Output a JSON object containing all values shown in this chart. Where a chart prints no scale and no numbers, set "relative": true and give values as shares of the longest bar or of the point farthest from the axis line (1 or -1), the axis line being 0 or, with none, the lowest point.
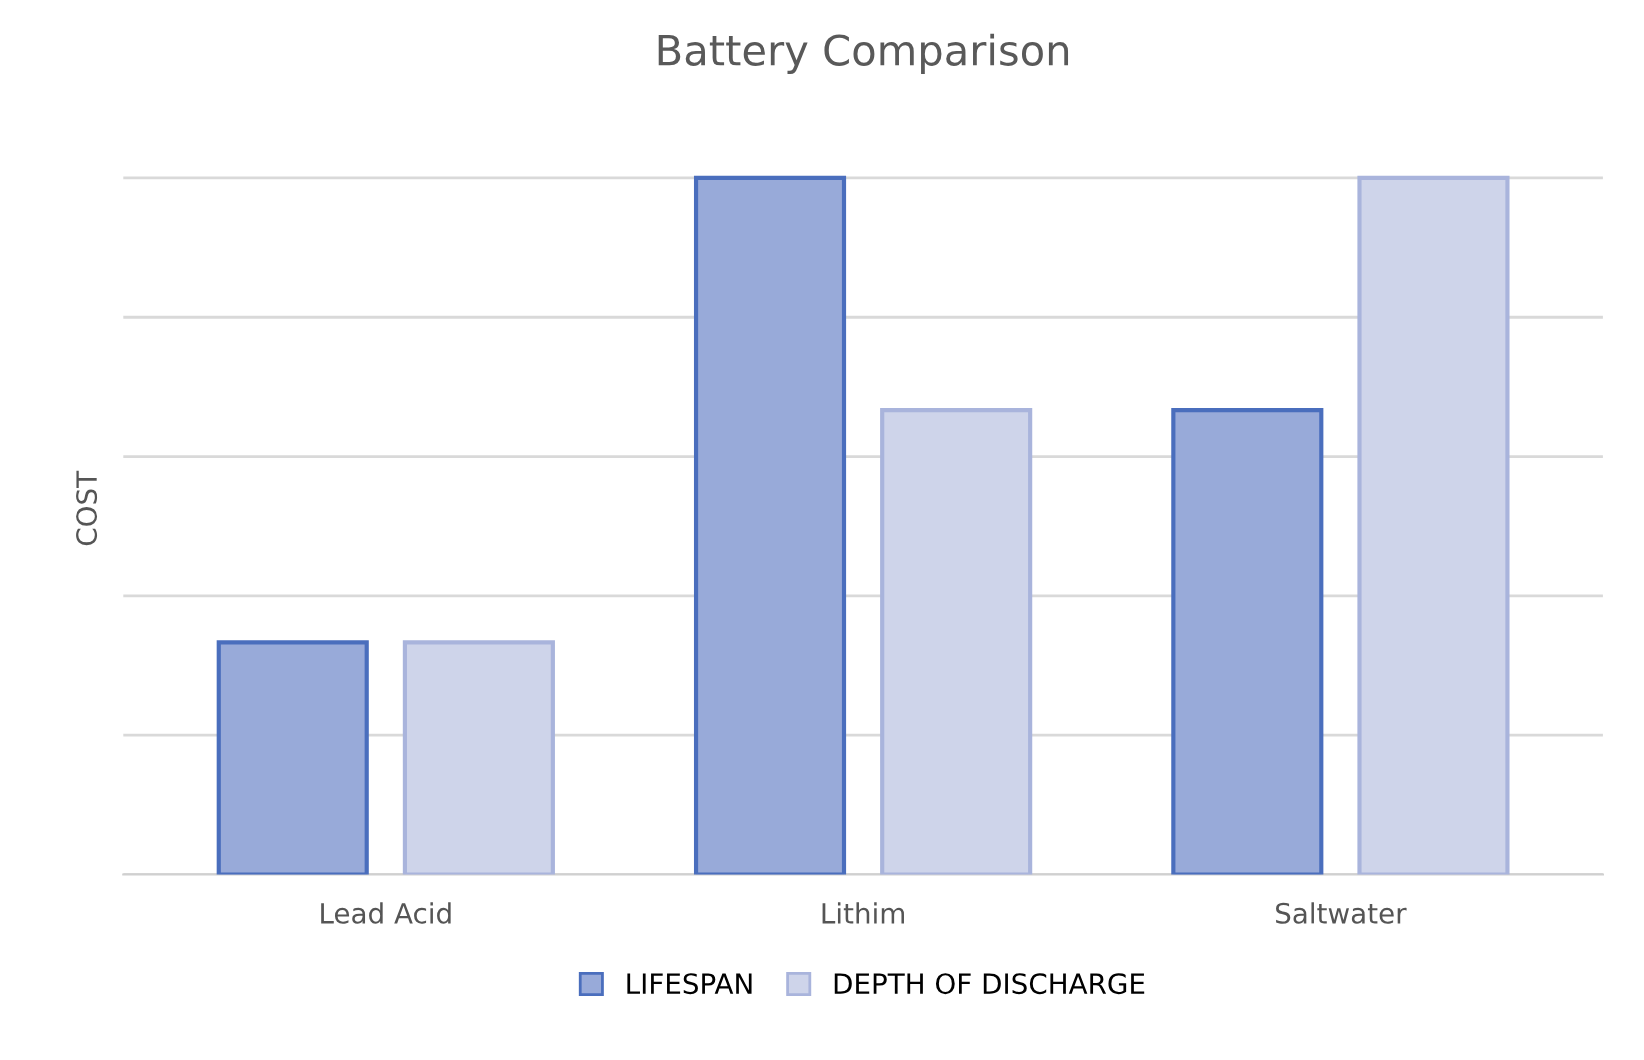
{
  "chart_data": {
    "type": "bar",
    "title": "Battery Comparison",
    "ylabel": "COST",
    "relative": true,
    "categories": [
      "Lead Acid",
      "Lithim",
      "Saltwater"
    ],
    "series": [
      {
        "name": "LIFESPAN",
        "color": "#98aad9",
        "values": [
          0.3333,
          1,
          0.6667
        ]
      },
      {
        "name": "DEPTH OF DISCHARGE",
        "color": "#ced4ea",
        "values": [
          0.3333,
          0.6667,
          1
        ]
      }
    ],
    "grid": "y",
    "legend": "bottom"
  }
}
